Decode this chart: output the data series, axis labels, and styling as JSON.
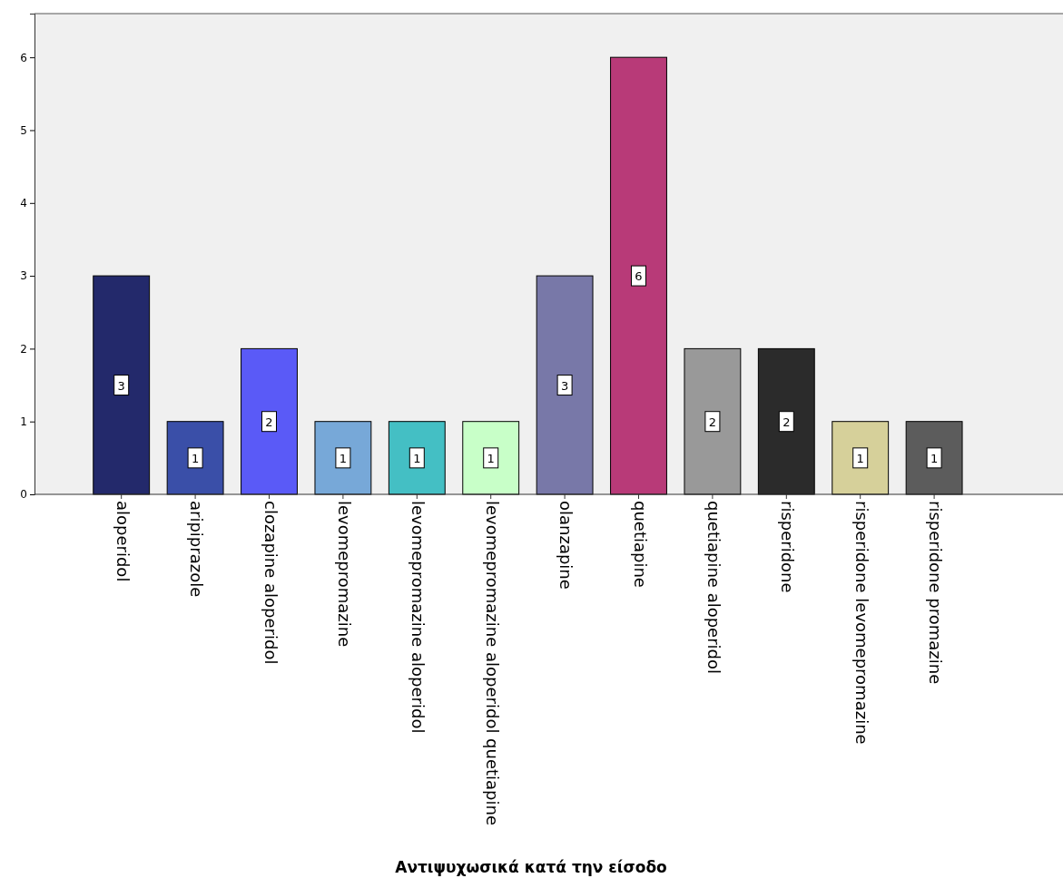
{
  "chart_data": {
    "type": "bar",
    "xlabel": "Αντιψυχωσικά κατά την είσοδο",
    "categories": [
      "aloperidol",
      "aripiprazole",
      "clozapine aloperidol",
      "levomepromazine",
      "levomepromazine aloperidol",
      "levomepromazine aloperidol quetiapine",
      "olanzapine",
      "quetiapine",
      "quetiapine aloperidol",
      "risperidone",
      "risperidone levomepromazine",
      "risperidone promazine"
    ],
    "values": [
      3,
      1,
      2,
      1,
      1,
      1,
      3,
      6,
      2,
      2,
      1,
      1
    ],
    "colors": [
      "#23296b",
      "#3a4fa8",
      "#5a5af7",
      "#77a8d8",
      "#44bfc4",
      "#c8ffc8",
      "#7878a8",
      "#b83a78",
      "#999999",
      "#2b2b2b",
      "#d6d09a",
      "#5c5c5c"
    ],
    "ylim": [
      0,
      6.6
    ],
    "yticks": [
      0,
      1,
      2,
      3,
      4,
      5,
      6
    ],
    "data_labels": true,
    "grid": false
  }
}
